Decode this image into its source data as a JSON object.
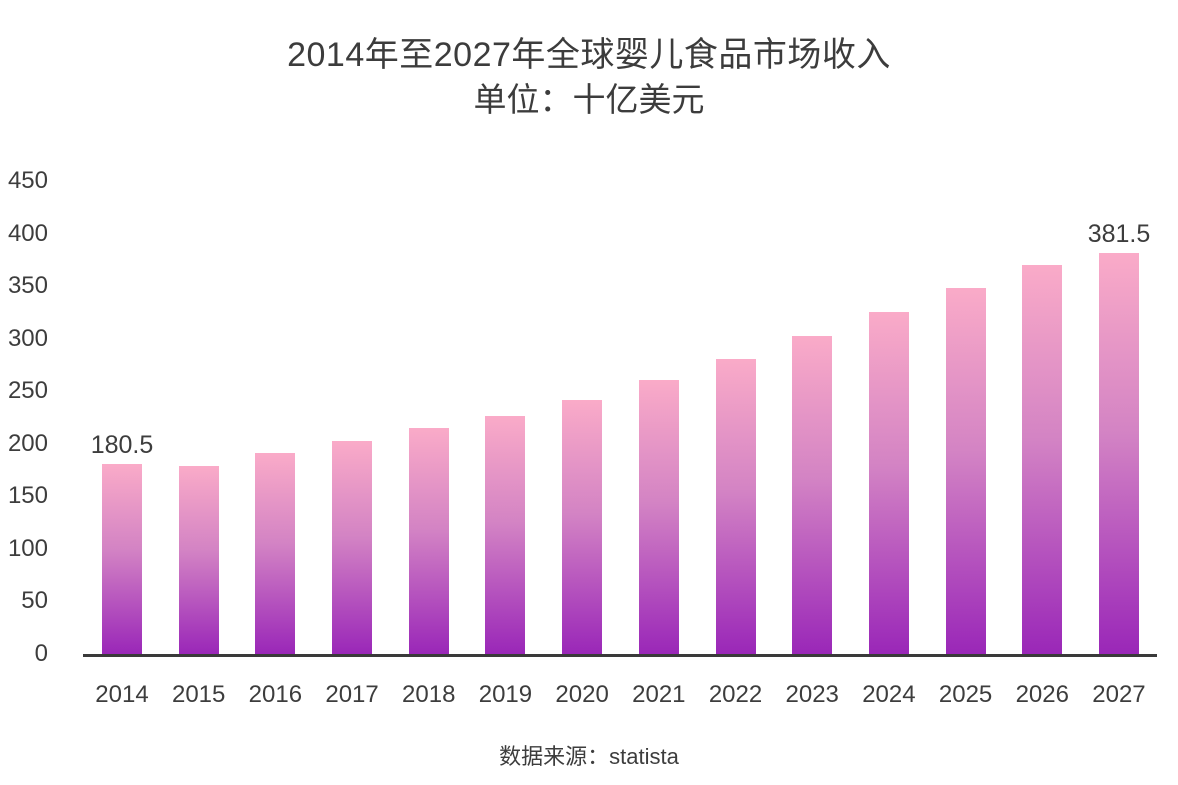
{
  "chart_data": {
    "type": "bar",
    "title": "2014年至2027年全球婴儿食品市场收入",
    "subtitle": "单位：十亿美元",
    "source": "数据来源：statista",
    "categories": [
      "2014",
      "2015",
      "2016",
      "2017",
      "2018",
      "2019",
      "2020",
      "2021",
      "2022",
      "2023",
      "2024",
      "2025",
      "2026",
      "2027"
    ],
    "values": [
      180.5,
      179,
      191,
      203,
      215.5,
      226,
      242,
      261,
      280.5,
      302.5,
      325,
      348,
      370.5,
      381.5
    ],
    "data_labels": [
      {
        "index": 0,
        "text": "180.5"
      },
      {
        "index": 13,
        "text": "381.5"
      }
    ],
    "xlabel": "",
    "ylabel": "",
    "ylim": [
      0,
      450
    ],
    "yticks": [
      0,
      50,
      100,
      150,
      200,
      250,
      300,
      350,
      400,
      450
    ],
    "grid": "off",
    "legend": "none",
    "colors": {
      "bar_gradient_top": "#FAABC8",
      "bar_gradient_mid": "#D383C4",
      "bar_gradient_bottom": "#9A27B8",
      "axis_line": "#3a3a3a",
      "text": "#3c3c3c"
    }
  }
}
